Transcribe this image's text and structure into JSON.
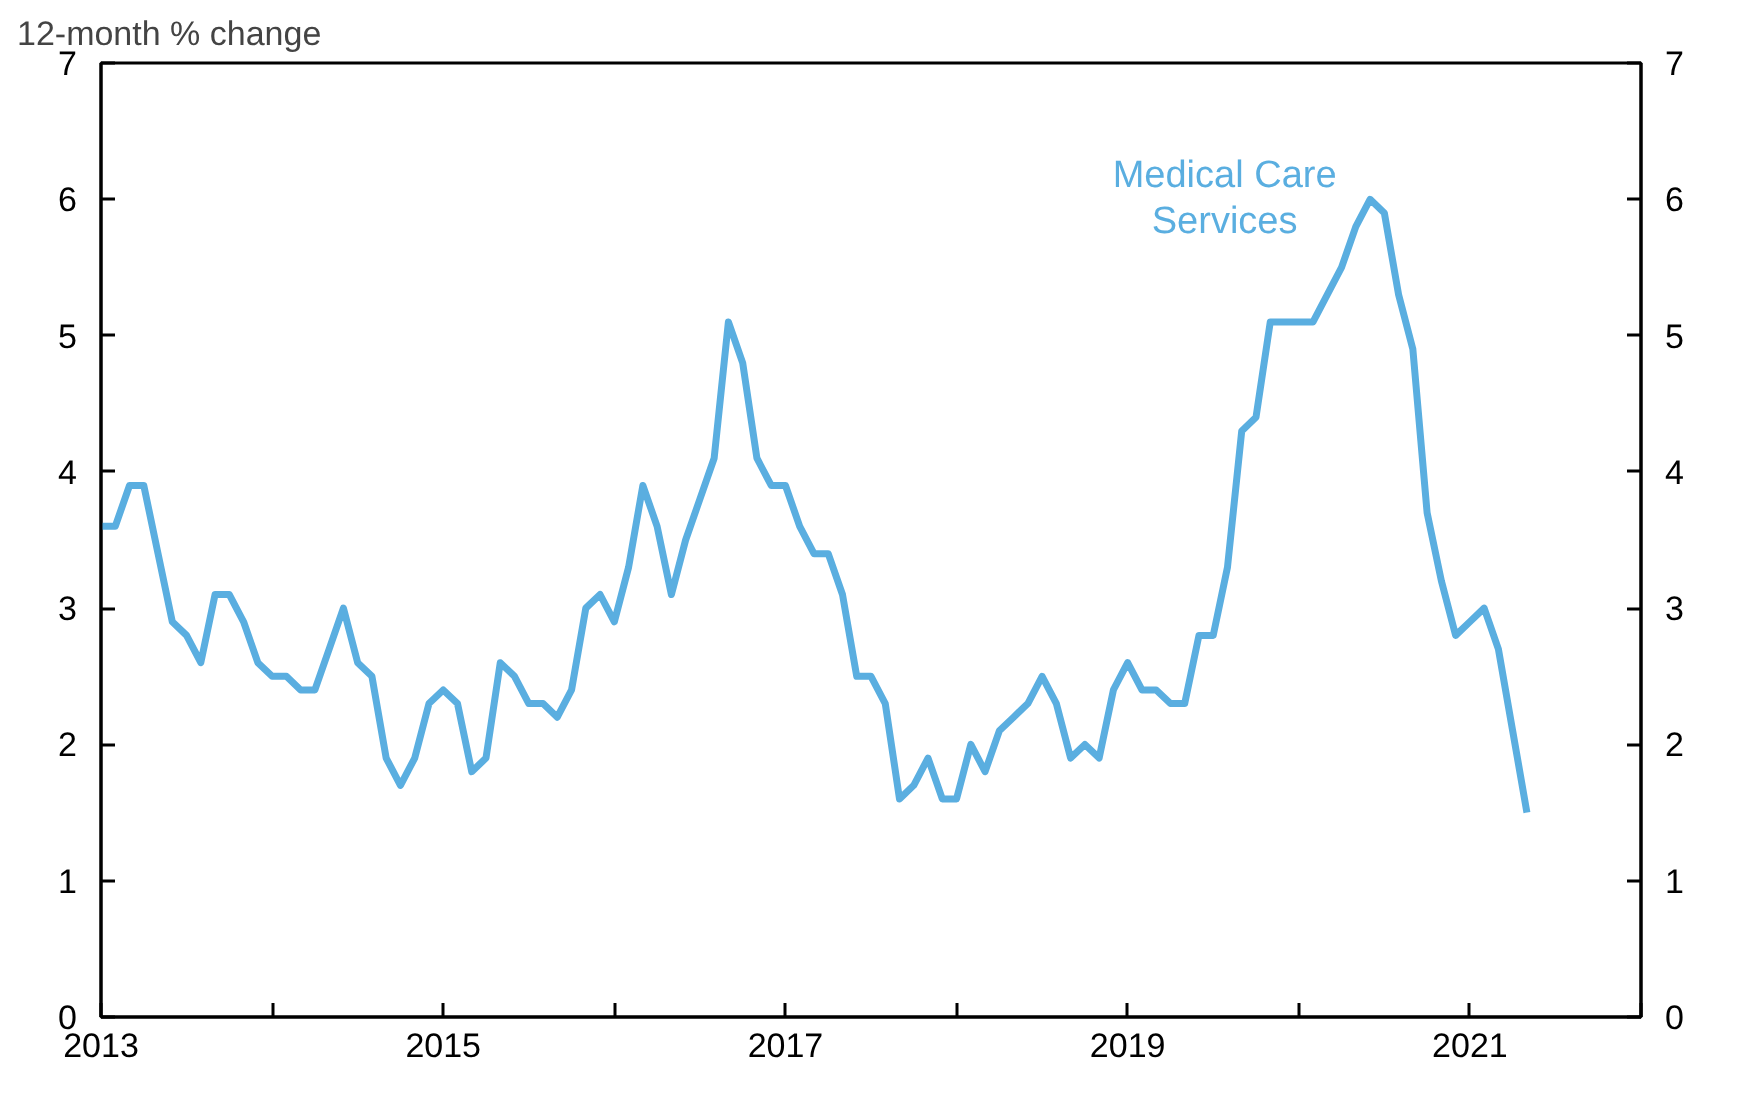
{
  "chart_data": {
    "type": "line",
    "ylabel": "12-month % change",
    "x": [
      "2013-01",
      "2013-02",
      "2013-03",
      "2013-04",
      "2013-05",
      "2013-06",
      "2013-07",
      "2013-08",
      "2013-09",
      "2013-10",
      "2013-11",
      "2013-12",
      "2014-01",
      "2014-02",
      "2014-03",
      "2014-04",
      "2014-05",
      "2014-06",
      "2014-07",
      "2014-08",
      "2014-09",
      "2014-10",
      "2014-11",
      "2014-12",
      "2015-01",
      "2015-02",
      "2015-03",
      "2015-04",
      "2015-05",
      "2015-06",
      "2015-07",
      "2015-08",
      "2015-09",
      "2015-10",
      "2015-11",
      "2015-12",
      "2016-01",
      "2016-02",
      "2016-03",
      "2016-04",
      "2016-05",
      "2016-06",
      "2016-07",
      "2016-08",
      "2016-09",
      "2016-10",
      "2016-11",
      "2016-12",
      "2017-01",
      "2017-02",
      "2017-03",
      "2017-04",
      "2017-05",
      "2017-06",
      "2017-07",
      "2017-08",
      "2017-09",
      "2017-10",
      "2017-11",
      "2017-12",
      "2018-01",
      "2018-02",
      "2018-03",
      "2018-04",
      "2018-05",
      "2018-06",
      "2018-07",
      "2018-08",
      "2018-09",
      "2018-10",
      "2018-11",
      "2018-12",
      "2019-01",
      "2019-02",
      "2019-03",
      "2019-04",
      "2019-05",
      "2019-06",
      "2019-07",
      "2019-08",
      "2019-09",
      "2019-10",
      "2019-11",
      "2019-12",
      "2020-01",
      "2020-02",
      "2020-03",
      "2020-04",
      "2020-05",
      "2020-06",
      "2020-07",
      "2020-08",
      "2020-09",
      "2020-10",
      "2020-11",
      "2020-12",
      "2021-01",
      "2021-02",
      "2021-03",
      "2021-04",
      "2021-05"
    ],
    "series": [
      {
        "name": "Medical Care Services",
        "color": "#5aaee0",
        "values": [
          3.6,
          3.6,
          3.9,
          3.9,
          3.4,
          2.9,
          2.8,
          2.6,
          3.1,
          3.1,
          2.9,
          2.6,
          2.5,
          2.5,
          2.4,
          2.4,
          2.7,
          3.0,
          2.6,
          2.5,
          1.9,
          1.7,
          1.9,
          2.3,
          2.4,
          2.3,
          1.8,
          1.9,
          2.6,
          2.5,
          2.3,
          2.3,
          2.2,
          2.4,
          3.0,
          3.1,
          2.9,
          3.3,
          3.9,
          3.6,
          3.1,
          3.5,
          3.8,
          4.1,
          5.1,
          4.8,
          4.1,
          3.9,
          3.9,
          3.6,
          3.4,
          3.4,
          3.1,
          2.5,
          2.5,
          2.3,
          1.6,
          1.7,
          1.9,
          1.6,
          1.6,
          2.0,
          1.8,
          2.1,
          2.2,
          2.3,
          2.5,
          2.3,
          1.9,
          2.0,
          1.9,
          2.4,
          2.6,
          2.4,
          2.4,
          2.3,
          2.3,
          2.8,
          2.8,
          3.3,
          4.3,
          4.4,
          5.1,
          5.1,
          5.1,
          5.1,
          5.3,
          5.5,
          5.8,
          6.0,
          5.9,
          5.3,
          4.9,
          3.7,
          3.2,
          2.8,
          2.9,
          3.0,
          2.7,
          2.1,
          1.5
        ]
      }
    ],
    "xlim": [
      "2013",
      "2022"
    ],
    "xticks": [
      {
        "value": "2013",
        "label": "2013"
      },
      {
        "value": "2014",
        "label": null
      },
      {
        "value": "2015",
        "label": "2015"
      },
      {
        "value": "2016",
        "label": null
      },
      {
        "value": "2017",
        "label": "2017"
      },
      {
        "value": "2018",
        "label": null
      },
      {
        "value": "2019",
        "label": "2019"
      },
      {
        "value": "2020",
        "label": null
      },
      {
        "value": "2021",
        "label": "2021"
      },
      {
        "value": "2022",
        "label": null
      }
    ],
    "ylim": [
      0,
      7
    ],
    "yticks": [
      0,
      1,
      2,
      3,
      4,
      5,
      6,
      7
    ],
    "y2lim": [
      0,
      7
    ],
    "y2ticks": [
      0,
      1,
      2,
      3,
      4,
      5,
      6,
      7
    ],
    "grid": false,
    "legend": false,
    "marker": "none",
    "line_style": "solid"
  }
}
